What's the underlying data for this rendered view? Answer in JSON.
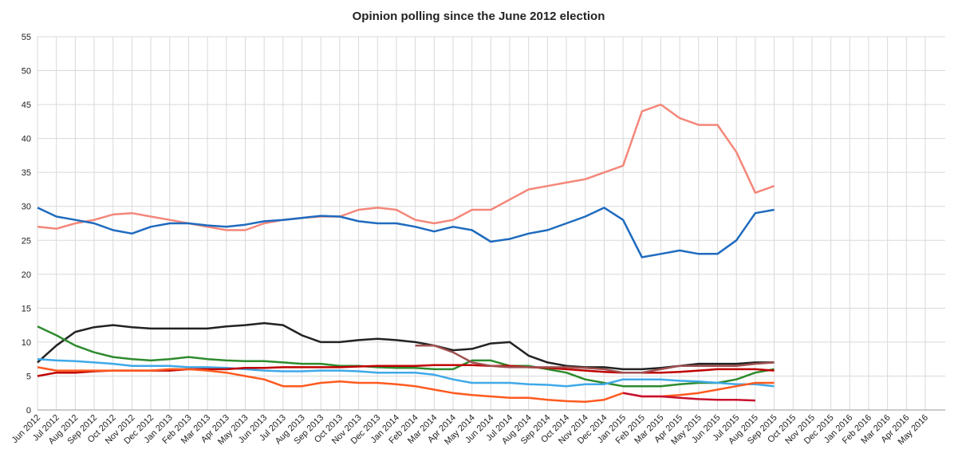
{
  "chart_data": {
    "type": "line",
    "title": "Opinion polling since the June 2012 election",
    "categories": [
      "Jun 2012",
      "Jul 2012",
      "Aug 2012",
      "Sep 2012",
      "Oct 2012",
      "Nov 2012",
      "Dec 2012",
      "Jan 2013",
      "Feb 2013",
      "Mar 2013",
      "Apr 2013",
      "May 2013",
      "Jun 2013",
      "Jul 2013",
      "Aug 2013",
      "Sep 2013",
      "Oct 2013",
      "Nov 2013",
      "Dec 2013",
      "Jan 2014",
      "Feb 2014",
      "Mar 2014",
      "Apr 2014",
      "May 2014",
      "Jun 2014",
      "Jul 2014",
      "Aug 2014",
      "Sep 2014",
      "Oct 2014",
      "Nov 2014",
      "Dec 2014",
      "Jan 2015",
      "Feb 2015",
      "Mar 2015",
      "Apr 2015",
      "May 2015",
      "Jun 2015",
      "Jul 2015",
      "Aug 2015",
      "Sep 2015",
      "Oct 2015",
      "Nov 2015",
      "Dec 2015",
      "Jan 2016",
      "Feb 2016",
      "Mar 2016",
      "Apr 2016",
      "May 2016"
    ],
    "series": [
      {
        "color": "#f4877a",
        "values": [
          27,
          26.7,
          27.5,
          28,
          28.8,
          29,
          28.5,
          28,
          27.5,
          27,
          26.5,
          26.5,
          27.5,
          28,
          28.3,
          28.5,
          28.5,
          29.5,
          29.8,
          29.5,
          28,
          27.5,
          28,
          29.5,
          29.5,
          31,
          32.5,
          33,
          33.5,
          34,
          35,
          36,
          44,
          45,
          43,
          42,
          42,
          38,
          32,
          33,
          null,
          null,
          null,
          null,
          null,
          null,
          null,
          null
        ]
      },
      {
        "color": "#1f6bbf",
        "values": [
          29.8,
          28.5,
          28,
          27.5,
          26.5,
          26,
          27,
          27.5,
          27.5,
          27.2,
          27,
          27.3,
          27.8,
          28,
          28.3,
          28.6,
          28.5,
          27.8,
          27.5,
          27.5,
          27,
          26.3,
          27,
          26.5,
          24.8,
          25.2,
          26,
          26.5,
          27.5,
          28.5,
          29.8,
          28,
          22.5,
          23,
          23.5,
          23,
          23,
          25,
          29,
          29.5,
          null,
          null,
          null,
          null,
          null,
          null,
          null,
          null
        ]
      },
      {
        "color": "#222222",
        "values": [
          7,
          9.5,
          11.5,
          12.2,
          12.5,
          12.2,
          12,
          12,
          12,
          12,
          12.3,
          12.5,
          12.8,
          12.5,
          11,
          10,
          10,
          10.3,
          10.5,
          10.3,
          10,
          9.5,
          8.8,
          9,
          9.8,
          10,
          8,
          7,
          6.5,
          6.3,
          6.3,
          6,
          6,
          6.2,
          6.5,
          6.8,
          6.8,
          6.8,
          7,
          7,
          null,
          null,
          null,
          null,
          null,
          null,
          null,
          null
        ]
      },
      {
        "color": "#2e8b2e",
        "values": [
          12.3,
          11,
          9.5,
          8.5,
          7.8,
          7.5,
          7.3,
          7.5,
          7.8,
          7.5,
          7.3,
          7.2,
          7.2,
          7,
          6.8,
          6.8,
          6.5,
          6.5,
          6.3,
          6.2,
          6.2,
          6,
          6,
          7.3,
          7.3,
          6.5,
          6.5,
          6,
          5.5,
          4.5,
          4,
          3.5,
          3.5,
          3.5,
          3.8,
          4,
          4,
          4.5,
          5.5,
          6,
          null,
          null,
          null,
          null,
          null,
          null,
          null,
          null
        ]
      },
      {
        "color": "#3fa9e8",
        "values": [
          7.5,
          7.3,
          7.2,
          7,
          6.8,
          6.5,
          6.5,
          6.5,
          6.3,
          6.3,
          6.2,
          6,
          5.8,
          5.7,
          5.7,
          5.8,
          5.8,
          5.7,
          5.5,
          5.5,
          5.5,
          5.2,
          4.5,
          4,
          4,
          4,
          3.8,
          3.7,
          3.5,
          3.8,
          3.8,
          4.5,
          4.5,
          4.5,
          4.3,
          4.2,
          4,
          3.8,
          3.8,
          3.5,
          null,
          null,
          null,
          null,
          null,
          null,
          null,
          null
        ]
      },
      {
        "color": "#c00000",
        "values": [
          5,
          5.5,
          5.5,
          5.7,
          5.8,
          5.8,
          5.8,
          5.8,
          6,
          6,
          6,
          6.2,
          6.2,
          6.3,
          6.3,
          6.3,
          6.3,
          6.4,
          6.5,
          6.5,
          6.5,
          6.6,
          6.6,
          6.6,
          6.5,
          6.5,
          6.3,
          6.2,
          6,
          5.8,
          5.6,
          5.5,
          5.5,
          5.5,
          5.6,
          5.8,
          6,
          6,
          6,
          5.8,
          null,
          null,
          null,
          null,
          null,
          null,
          null,
          null
        ]
      },
      {
        "color": "#ff5a1f",
        "values": [
          6.3,
          5.8,
          5.8,
          5.8,
          5.8,
          5.8,
          5.8,
          6,
          6,
          5.8,
          5.5,
          5,
          4.5,
          3.5,
          3.5,
          4,
          4.2,
          4,
          4,
          3.8,
          3.5,
          3,
          2.5,
          2.2,
          2,
          1.8,
          1.8,
          1.5,
          1.3,
          1.2,
          1.5,
          2.5,
          2,
          2,
          2.2,
          2.5,
          3,
          3.5,
          4,
          4,
          null,
          null,
          null,
          null,
          null,
          null,
          null,
          null
        ]
      },
      {
        "color": "#a05050",
        "values": [
          null,
          null,
          null,
          null,
          null,
          null,
          null,
          null,
          null,
          null,
          null,
          null,
          null,
          null,
          null,
          null,
          null,
          null,
          null,
          null,
          9.5,
          9.5,
          8.5,
          7,
          6.5,
          6.3,
          6.3,
          6.3,
          6.3,
          6.2,
          6,
          5.5,
          5.5,
          6,
          6.5,
          6.5,
          6.5,
          6.5,
          6.8,
          7,
          null,
          null,
          null,
          null,
          null,
          null,
          null,
          null
        ]
      },
      {
        "color": "#c8102e",
        "values": [
          null,
          null,
          null,
          null,
          null,
          null,
          null,
          null,
          null,
          null,
          null,
          null,
          null,
          null,
          null,
          null,
          null,
          null,
          null,
          null,
          null,
          null,
          null,
          null,
          null,
          null,
          null,
          null,
          null,
          null,
          null,
          2.5,
          2,
          2,
          1.8,
          1.6,
          1.5,
          1.5,
          1.4,
          null,
          null,
          null,
          null,
          null,
          null,
          null,
          null,
          null
        ]
      }
    ],
    "ylim": [
      0,
      55
    ],
    "yticks": [
      0,
      5,
      10,
      15,
      20,
      25,
      30,
      35,
      40,
      45,
      50,
      55
    ],
    "grid": true
  }
}
